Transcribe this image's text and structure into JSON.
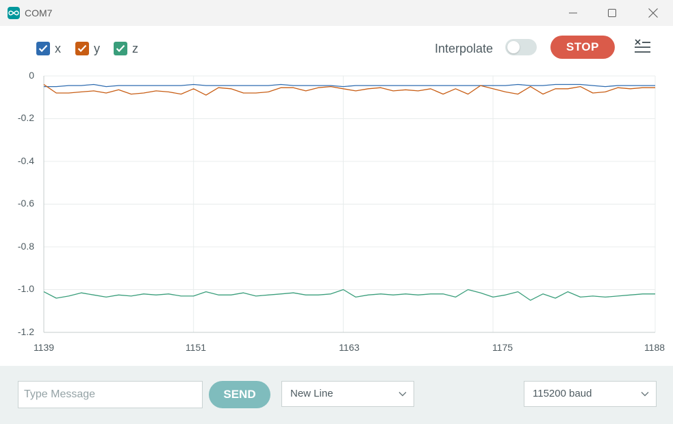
{
  "window": {
    "title": "COM7",
    "accent": "#00979c"
  },
  "toolbar": {
    "legend": [
      {
        "label": "x",
        "color": "#2f6cb0",
        "checked": true
      },
      {
        "label": "y",
        "color": "#c85d14",
        "checked": true
      },
      {
        "label": "z",
        "color": "#3a9e7b",
        "checked": true
      }
    ],
    "interpolate_label": "Interpolate",
    "interpolate_on": false,
    "stop_label": "STOP",
    "stop_color": "#da5b4a"
  },
  "chart_data": {
    "type": "line",
    "xlim": [
      1139,
      1188
    ],
    "ylim": [
      -1.2,
      0
    ],
    "x_ticks": [
      "1139",
      "1151",
      "1163",
      "1175",
      "1188"
    ],
    "y_ticks": [
      "0",
      "-0.2",
      "-0.4",
      "-0.6",
      "-0.8",
      "-1.0",
      "-1.2"
    ],
    "grid": true,
    "series": [
      {
        "name": "x",
        "color": "#2f6cb0",
        "x": [
          1139,
          1140,
          1141,
          1142,
          1143,
          1144,
          1145,
          1146,
          1147,
          1148,
          1149,
          1150,
          1151,
          1152,
          1153,
          1154,
          1155,
          1156,
          1157,
          1158,
          1159,
          1160,
          1161,
          1162,
          1163,
          1164,
          1165,
          1166,
          1167,
          1168,
          1169,
          1170,
          1171,
          1172,
          1173,
          1174,
          1175,
          1176,
          1177,
          1178,
          1179,
          1180,
          1181,
          1182,
          1183,
          1184,
          1185,
          1186,
          1187,
          1188
        ],
        "values": [
          -0.05,
          -0.05,
          -0.045,
          -0.045,
          -0.04,
          -0.05,
          -0.045,
          -0.045,
          -0.045,
          -0.045,
          -0.045,
          -0.045,
          -0.04,
          -0.045,
          -0.045,
          -0.045,
          -0.045,
          -0.045,
          -0.045,
          -0.04,
          -0.045,
          -0.045,
          -0.045,
          -0.045,
          -0.05,
          -0.045,
          -0.045,
          -0.045,
          -0.045,
          -0.045,
          -0.045,
          -0.045,
          -0.045,
          -0.045,
          -0.045,
          -0.045,
          -0.045,
          -0.045,
          -0.04,
          -0.045,
          -0.045,
          -0.04,
          -0.04,
          -0.04,
          -0.045,
          -0.05,
          -0.045,
          -0.045,
          -0.045,
          -0.045
        ]
      },
      {
        "name": "y",
        "color": "#c85d14",
        "x": [
          1139,
          1140,
          1141,
          1142,
          1143,
          1144,
          1145,
          1146,
          1147,
          1148,
          1149,
          1150,
          1151,
          1152,
          1153,
          1154,
          1155,
          1156,
          1157,
          1158,
          1159,
          1160,
          1161,
          1162,
          1163,
          1164,
          1165,
          1166,
          1167,
          1168,
          1169,
          1170,
          1171,
          1172,
          1173,
          1174,
          1175,
          1176,
          1177,
          1178,
          1179,
          1180,
          1181,
          1182,
          1183,
          1184,
          1185,
          1186,
          1187,
          1188
        ],
        "values": [
          -0.04,
          -0.08,
          -0.08,
          -0.075,
          -0.07,
          -0.08,
          -0.065,
          -0.085,
          -0.08,
          -0.07,
          -0.075,
          -0.085,
          -0.06,
          -0.09,
          -0.055,
          -0.06,
          -0.08,
          -0.08,
          -0.075,
          -0.055,
          -0.055,
          -0.07,
          -0.055,
          -0.05,
          -0.06,
          -0.07,
          -0.06,
          -0.055,
          -0.07,
          -0.065,
          -0.07,
          -0.06,
          -0.085,
          -0.06,
          -0.085,
          -0.045,
          -0.06,
          -0.075,
          -0.085,
          -0.05,
          -0.085,
          -0.06,
          -0.06,
          -0.05,
          -0.08,
          -0.075,
          -0.055,
          -0.06,
          -0.055,
          -0.055
        ]
      },
      {
        "name": "z",
        "color": "#3a9e7b",
        "x": [
          1139,
          1140,
          1141,
          1142,
          1143,
          1144,
          1145,
          1146,
          1147,
          1148,
          1149,
          1150,
          1151,
          1152,
          1153,
          1154,
          1155,
          1156,
          1157,
          1158,
          1159,
          1160,
          1161,
          1162,
          1163,
          1164,
          1165,
          1166,
          1167,
          1168,
          1169,
          1170,
          1171,
          1172,
          1173,
          1174,
          1175,
          1176,
          1177,
          1178,
          1179,
          1180,
          1181,
          1182,
          1183,
          1184,
          1185,
          1186,
          1187,
          1188
        ],
        "values": [
          -1.01,
          -1.04,
          -1.03,
          -1.015,
          -1.025,
          -1.035,
          -1.025,
          -1.03,
          -1.02,
          -1.025,
          -1.02,
          -1.03,
          -1.03,
          -1.01,
          -1.025,
          -1.025,
          -1.015,
          -1.03,
          -1.025,
          -1.02,
          -1.015,
          -1.025,
          -1.025,
          -1.02,
          -1.0,
          -1.035,
          -1.025,
          -1.02,
          -1.025,
          -1.02,
          -1.025,
          -1.02,
          -1.02,
          -1.035,
          -1.0,
          -1.015,
          -1.035,
          -1.025,
          -1.01,
          -1.05,
          -1.02,
          -1.04,
          -1.01,
          -1.035,
          -1.03,
          -1.035,
          -1.03,
          -1.025,
          -1.02,
          -1.02
        ]
      }
    ]
  },
  "bottombar": {
    "message_placeholder": "Type Message",
    "message_value": "",
    "send_label": "SEND",
    "line_ending": "New Line",
    "baud": "115200 baud"
  }
}
